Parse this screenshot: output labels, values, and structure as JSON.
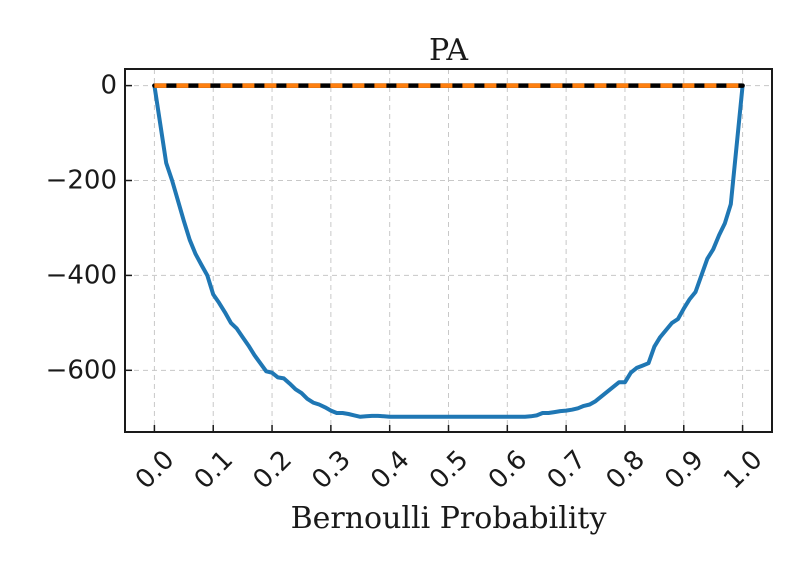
{
  "chart_data": {
    "type": "line",
    "title": "PA",
    "xlabel": "Bernoulli Probability",
    "ylabel": "",
    "xlim": [
      -0.05,
      1.05
    ],
    "ylim": [
      -730,
      35
    ],
    "xticks": [
      0.0,
      0.1,
      0.2,
      0.3,
      0.4,
      0.5,
      0.6,
      0.7,
      0.8,
      0.9,
      1.0
    ],
    "xtick_labels": [
      "0.0",
      "0.1",
      "0.2",
      "0.3",
      "0.4",
      "0.5",
      "0.6",
      "0.7",
      "0.8",
      "0.9",
      "1.0"
    ],
    "yticks": [
      0,
      -200,
      -400,
      -600
    ],
    "ytick_labels": [
      "0",
      "−200",
      "−400",
      "−600"
    ],
    "grid": true,
    "legend": "none",
    "series": [
      {
        "color": "#1f77b4",
        "style": "solid",
        "x": [
          0.0,
          0.02,
          0.03,
          0.04,
          0.05,
          0.06,
          0.07,
          0.08,
          0.09,
          0.1,
          0.11,
          0.12,
          0.13,
          0.14,
          0.15,
          0.16,
          0.17,
          0.18,
          0.19,
          0.2,
          0.21,
          0.22,
          0.23,
          0.24,
          0.25,
          0.26,
          0.27,
          0.28,
          0.29,
          0.3,
          0.31,
          0.32,
          0.33,
          0.34,
          0.35,
          0.36,
          0.37,
          0.38,
          0.39,
          0.4,
          0.42,
          0.45,
          0.5,
          0.55,
          0.6,
          0.63,
          0.64,
          0.65,
          0.66,
          0.67,
          0.68,
          0.69,
          0.7,
          0.71,
          0.72,
          0.73,
          0.74,
          0.75,
          0.76,
          0.77,
          0.78,
          0.79,
          0.8,
          0.81,
          0.82,
          0.83,
          0.84,
          0.85,
          0.86,
          0.87,
          0.88,
          0.89,
          0.9,
          0.91,
          0.92,
          0.93,
          0.94,
          0.95,
          0.96,
          0.97,
          0.98,
          1.0
        ],
        "y": [
          0,
          -163,
          -200,
          -242,
          -285,
          -325,
          -355,
          -378,
          -400,
          -440,
          -458,
          -478,
          -500,
          -512,
          -530,
          -548,
          -568,
          -585,
          -602,
          -605,
          -615,
          -617,
          -628,
          -640,
          -648,
          -660,
          -668,
          -672,
          -678,
          -685,
          -690,
          -690,
          -692,
          -695,
          -698,
          -697,
          -696,
          -696,
          -697,
          -698,
          -698,
          -698,
          -698,
          -698,
          -698,
          -698,
          -697,
          -695,
          -690,
          -690,
          -688,
          -686,
          -685,
          -683,
          -680,
          -675,
          -672,
          -665,
          -655,
          -645,
          -635,
          -625,
          -625,
          -605,
          -595,
          -590,
          -585,
          -550,
          -530,
          -515,
          -500,
          -492,
          -470,
          -450,
          -435,
          -400,
          -365,
          -345,
          -315,
          -290,
          -250,
          0
        ]
      },
      {
        "color": "#000000",
        "style": "solid",
        "x": [
          0.0,
          1.0
        ],
        "y": [
          0,
          0
        ]
      },
      {
        "color": "#ff7f0e",
        "style": "dashed",
        "x": [
          0.0,
          1.0
        ],
        "y": [
          0,
          0
        ]
      }
    ]
  }
}
